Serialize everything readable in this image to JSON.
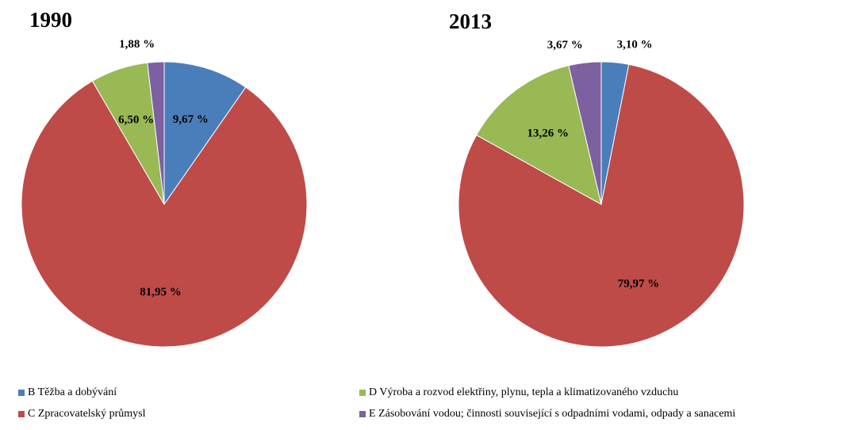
{
  "chart_data": [
    {
      "type": "pie",
      "title": "1990",
      "values": [
        9.67,
        81.95,
        6.5,
        1.88
      ],
      "value_labels": [
        "9,67 %",
        "81,95 %",
        "6,50 %",
        "1,88 %"
      ]
    },
    {
      "type": "pie",
      "title": "2013",
      "values": [
        3.1,
        79.97,
        13.26,
        3.67
      ],
      "value_labels": [
        "3,10 %",
        "79,97 %",
        "13,26 %",
        "3,67 %"
      ]
    }
  ],
  "legend": {
    "categories": [
      "B Těžba a dobývání",
      "C Zpracovatelský průmysl",
      "D Výroba a rozvod elektřiny, plynu, tepla a klimatizovaného vzduchu",
      "E  Zásobování vodou; činnosti související s odpadními vodami, odpady a sanacemi"
    ],
    "colors": [
      "#4a7ebb",
      "#be4b48",
      "#98b954",
      "#7d60a0"
    ]
  }
}
